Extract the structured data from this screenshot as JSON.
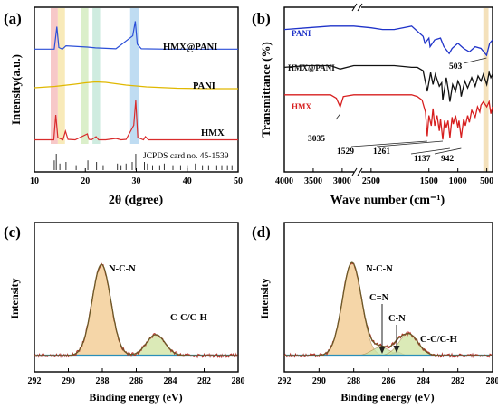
{
  "chart_data": [
    {
      "panel_label": "(a)",
      "type": "line",
      "xlabel": "2θ (dgree)",
      "ylabel": "Intensity(a.u.)",
      "xlim": [
        10,
        50
      ],
      "x_ticks": [
        10,
        20,
        30,
        40,
        50
      ],
      "shaded_2theta_bands": [
        {
          "from": 13.2,
          "to": 14.6,
          "color": "#f4b6b6"
        },
        {
          "from": 14.6,
          "to": 16.0,
          "color": "#f6e3a2"
        },
        {
          "from": 19.2,
          "to": 20.6,
          "color": "#cfe9b8"
        },
        {
          "from": 21.4,
          "to": 22.9,
          "color": "#bfe6d6"
        },
        {
          "from": 28.8,
          "to": 30.6,
          "color": "#a9d0ee"
        }
      ],
      "series": [
        {
          "name": "HMX@PANI",
          "color": "#2b4fd8",
          "x": [
            10,
            13.9,
            14.4,
            14.8,
            15.5,
            16.2,
            20.4,
            22.0,
            26.0,
            29.3,
            29.8,
            30.2,
            31.0,
            36.0,
            45.0,
            50
          ],
          "y": [
            0.8,
            0.8,
            6.2,
            1.2,
            0.8,
            1.6,
            1.3,
            1.1,
            0.9,
            4.0,
            7.5,
            2.0,
            0.9,
            0.8,
            0.8,
            0.8
          ]
        },
        {
          "name": "PANI",
          "color": "#e0b800",
          "x": [
            10,
            14,
            18,
            20,
            22,
            24,
            26,
            28,
            32,
            38,
            44,
            50
          ],
          "y": [
            0.6,
            0.9,
            1.4,
            1.7,
            1.9,
            1.8,
            1.5,
            1.2,
            0.8,
            0.5,
            0.4,
            0.4
          ]
        },
        {
          "name": "HMX",
          "color": "#d92b2b",
          "x": [
            10,
            13.8,
            14.2,
            14.6,
            15.6,
            16.1,
            16.6,
            18.0,
            20.4,
            20.7,
            21.2,
            22.1,
            22.6,
            24.0,
            26.0,
            27.0,
            28.0,
            29.5,
            29.9,
            30.3,
            31.4,
            31.8,
            32.4,
            36.0,
            40.0,
            50
          ],
          "y": [
            0.3,
            0.3,
            5.8,
            0.8,
            0.3,
            2.2,
            0.4,
            0.3,
            1.6,
            0.4,
            0.3,
            1.0,
            0.3,
            0.3,
            0.6,
            0.3,
            0.4,
            3.5,
            9.0,
            0.8,
            0.3,
            1.0,
            0.3,
            0.3,
            0.3,
            0.3
          ]
        }
      ],
      "reference": {
        "name": "JCPDS card no. 45-1539",
        "color": "#333333",
        "positions": [
          13.9,
          14.3,
          15.0,
          16.2,
          18.2,
          20.5,
          22.2,
          23.5,
          26.3,
          27.0,
          28.0,
          29.2,
          29.9,
          31.6,
          32.2,
          33.2,
          34.6,
          35.5,
          37.2,
          38.7,
          40.0,
          41.6,
          43.0,
          44.2,
          45.8,
          46.8,
          47.9,
          48.8
        ],
        "heights": [
          0.6,
          1.0,
          0.4,
          0.5,
          0.3,
          0.6,
          0.5,
          0.3,
          0.4,
          0.3,
          0.4,
          0.5,
          1.0,
          0.5,
          0.4,
          0.3,
          0.3,
          0.4,
          0.3,
          0.3,
          0.3,
          0.4,
          0.3,
          0.3,
          0.3,
          0.3,
          0.3,
          0.3
        ]
      }
    },
    {
      "panel_label": "(b)",
      "type": "line",
      "xlabel": "Wave number (cm⁻¹)",
      "ylabel": "Transmittance (%)",
      "xlim": [
        4000,
        400
      ],
      "x_ticks": [
        4000,
        3500,
        3000,
        2500,
        1500,
        1000,
        500
      ],
      "axis_break_near": 2000,
      "highlight_band": {
        "from": 560,
        "to": 470,
        "color": "#f3deb4"
      },
      "annotations": [
        {
          "text": "503",
          "x": 503,
          "series": "PANI"
        },
        {
          "text": "3035",
          "x": 3035,
          "series": "HMX"
        },
        {
          "text": "1529",
          "x": 1529,
          "series": "HMX"
        },
        {
          "text": "1261",
          "x": 1261,
          "series": "HMX"
        },
        {
          "text": "1137",
          "x": 1137,
          "series": "HMX"
        },
        {
          "text": "942",
          "x": 942,
          "series": "HMX"
        }
      ],
      "series": [
        {
          "name": "PANI",
          "color": "#1f33c9",
          "x": [
            4000,
            3600,
            3200,
            2800,
            2500,
            2300,
            2100,
            1800,
            1700,
            1600,
            1570,
            1500,
            1480,
            1400,
            1300,
            1240,
            1150,
            1100,
            1000,
            900,
            800,
            700,
            600,
            503,
            450,
            400
          ],
          "y": [
            8.6,
            8.7,
            8.8,
            8.8,
            8.7,
            8.6,
            8.6,
            8.8,
            8.5,
            8.2,
            7.8,
            8.1,
            7.6,
            8.0,
            8.1,
            7.6,
            7.2,
            7.5,
            7.8,
            7.5,
            7.3,
            7.6,
            7.5,
            7.1,
            7.8,
            8.0
          ]
        },
        {
          "name": "HMX@PANI",
          "color": "#111111",
          "x": [
            4000,
            3600,
            3200,
            3035,
            2800,
            2500,
            2300,
            2100,
            1800,
            1700,
            1600,
            1529,
            1470,
            1430,
            1390,
            1320,
            1280,
            1261,
            1200,
            1160,
            1137,
            1090,
            1040,
            1000,
            960,
            942,
            880,
            830,
            760,
            700,
            650,
            600,
            560,
            500,
            460,
            430,
            400
          ],
          "y": [
            6.4,
            6.5,
            6.5,
            6.3,
            6.5,
            6.5,
            6.5,
            6.5,
            6.4,
            6.4,
            6.2,
            5.0,
            6.1,
            5.4,
            6.0,
            5.3,
            5.5,
            4.5,
            5.8,
            5.0,
            4.4,
            5.4,
            5.0,
            5.6,
            5.3,
            4.7,
            5.6,
            5.2,
            5.8,
            5.3,
            5.9,
            5.6,
            6.0,
            5.4,
            6.1,
            5.8,
            6.0
          ]
        },
        {
          "name": "HMX",
          "color": "#d71f1f",
          "x": [
            4000,
            3600,
            3200,
            3100,
            3035,
            2980,
            2800,
            2500,
            2300,
            2100,
            1800,
            1700,
            1620,
            1560,
            1529,
            1500,
            1460,
            1430,
            1400,
            1360,
            1320,
            1300,
            1261,
            1230,
            1200,
            1170,
            1137,
            1100,
            1080,
            1040,
            1000,
            980,
            942,
            900,
            870,
            830,
            800,
            760,
            700,
            660,
            620,
            600,
            560,
            500,
            460,
            430,
            400
          ],
          "y": [
            4.8,
            4.8,
            4.8,
            4.6,
            4.1,
            4.7,
            4.8,
            4.8,
            4.8,
            4.8,
            4.8,
            4.7,
            4.5,
            3.8,
            2.4,
            3.6,
            3.0,
            4.0,
            3.0,
            3.6,
            2.7,
            3.4,
            2.2,
            3.3,
            2.9,
            3.3,
            2.3,
            3.5,
            3.1,
            3.6,
            2.9,
            3.3,
            2.3,
            3.4,
            3.0,
            3.6,
            3.2,
            3.9,
            3.5,
            4.1,
            3.8,
            4.2,
            4.4,
            4.1,
            4.4,
            3.7,
            4.1
          ]
        }
      ]
    },
    {
      "panel_label": "(c)",
      "type": "line",
      "xlabel": "Binding energy (eV)",
      "ylabel": "Intensity",
      "xlim": [
        292,
        280
      ],
      "x_ticks": [
        292,
        290,
        288,
        286,
        284,
        282,
        280
      ],
      "baseline": 0.4,
      "fit_components": [
        {
          "label": "N-C-N",
          "center": 288.05,
          "height": 9.6,
          "sigma": 0.55,
          "color": "#f2c98c"
        },
        {
          "label": "C-C/C-H",
          "center": 284.85,
          "height": 2.2,
          "sigma": 0.55,
          "color": "#cfe3a0"
        }
      ],
      "series": [
        {
          "name": "raw",
          "color": "#b5332c"
        },
        {
          "name": "fit envelope",
          "color": "#6b5a28"
        },
        {
          "name": "background",
          "color": "#2a8fb8"
        }
      ]
    },
    {
      "panel_label": "(d)",
      "type": "line",
      "xlabel": "Binding energy (eV)",
      "ylabel": "Intensity",
      "xlim": [
        292,
        280
      ],
      "x_ticks": [
        292,
        290,
        288,
        286,
        284,
        282,
        280
      ],
      "baseline": 0.4,
      "fit_components": [
        {
          "label": "N-C-N",
          "center": 288.1,
          "height": 9.8,
          "sigma": 0.55,
          "color": "#f2c98c"
        },
        {
          "label": "C=N",
          "center": 286.45,
          "height": 0.9,
          "sigma": 0.5,
          "color": "#c8e6a8"
        },
        {
          "label": "C-N",
          "center": 285.5,
          "height": 0.4,
          "sigma": 0.25,
          "color": "#8fbce6"
        },
        {
          "label": "C-C/C-H",
          "center": 284.85,
          "height": 2.3,
          "sigma": 0.55,
          "color": "#cfe3a0"
        }
      ],
      "series": [
        {
          "name": "raw",
          "color": "#b5332c"
        },
        {
          "name": "fit envelope",
          "color": "#6b5a28"
        },
        {
          "name": "background",
          "color": "#2a8fb8"
        }
      ]
    }
  ]
}
